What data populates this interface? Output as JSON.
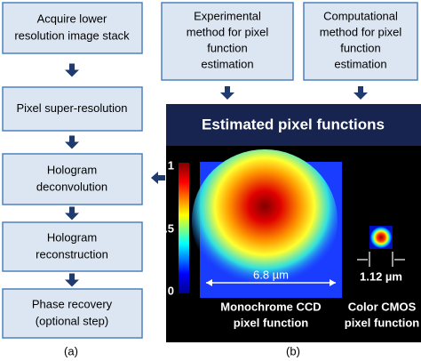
{
  "flow_steps": [
    {
      "lines": [
        "Acquire lower",
        "resolution image stack"
      ]
    },
    {
      "lines": [
        "Pixel super-resolution"
      ]
    },
    {
      "lines": [
        "Hologram",
        "deconvolution"
      ]
    },
    {
      "lines": [
        "Hologram",
        "reconstruction"
      ]
    },
    {
      "lines": [
        "Phase recovery",
        "(optional step)"
      ]
    }
  ],
  "methods": [
    {
      "lines": [
        "Experimental",
        "method for pixel",
        "function",
        "estimation"
      ]
    },
    {
      "lines": [
        "Computational",
        "method for pixel",
        "function",
        "estimation"
      ]
    }
  ],
  "panel": {
    "title": "Estimated pixel functions",
    "colorbar_ticks": [
      "1",
      "0.5",
      "0"
    ],
    "ccd": {
      "size_label": "6.8 µm",
      "caption": [
        "Monochrome CCD",
        "pixel function"
      ]
    },
    "cmos": {
      "size_label": "1.12 µm",
      "caption": [
        "Color CMOS",
        "pixel function"
      ]
    }
  },
  "panel_labels": [
    "(a)",
    "(b)"
  ]
}
